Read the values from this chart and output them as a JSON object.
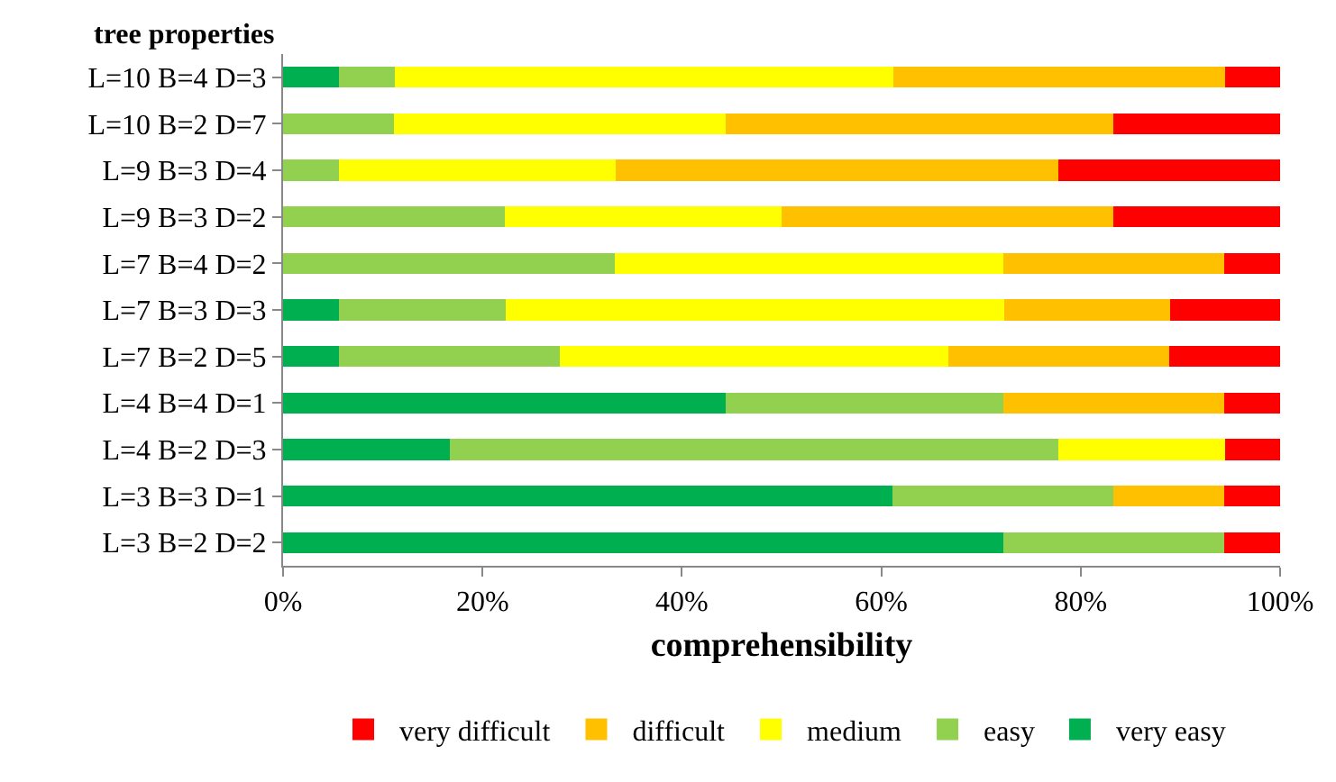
{
  "chart_data": {
    "type": "bar",
    "orientation": "horizontal",
    "stacked": true,
    "ylabel": "tree properties",
    "xlabel": "comprehensibility",
    "categories": [
      "L=10 B=4 D=3",
      "L=10 B=2 D=7",
      "L=9 B=3 D=4",
      "L=9 B=3 D=2",
      "L=7 B=4 D=2",
      "L=7 B=3 D=3",
      "L=7 B=2 D=5",
      "L=4 B=4 D=1",
      "L=4 B=2 D=3",
      "L=3 B=3 D=1",
      "L=3 B=2 D=2"
    ],
    "series": [
      {
        "name": "very easy",
        "color": "#00b050",
        "values": [
          5.6,
          0,
          0,
          0,
          0,
          5.6,
          5.6,
          44.4,
          16.7,
          61.1,
          72.2
        ]
      },
      {
        "name": "easy",
        "color": "#92d050",
        "values": [
          5.6,
          11.1,
          5.6,
          22.2,
          33.3,
          16.7,
          22.2,
          27.8,
          61.1,
          22.2,
          22.2
        ]
      },
      {
        "name": "medium",
        "color": "#ffff00",
        "values": [
          50,
          33.3,
          27.8,
          27.8,
          38.9,
          50,
          38.9,
          0,
          16.7,
          0,
          0
        ]
      },
      {
        "name": "difficult",
        "color": "#ffc000",
        "values": [
          33.3,
          38.9,
          44.4,
          33.3,
          22.2,
          16.7,
          22.2,
          22.2,
          0,
          11.1,
          0
        ]
      },
      {
        "name": "very difficult",
        "color": "#ff0000",
        "values": [
          5.6,
          16.7,
          22.2,
          16.7,
          5.6,
          11.1,
          11.1,
          5.6,
          5.6,
          5.6,
          5.6
        ]
      }
    ],
    "xlim": [
      0,
      100
    ],
    "xticks": [
      {
        "value": 0,
        "label": "0%"
      },
      {
        "value": 20,
        "label": "20%"
      },
      {
        "value": 40,
        "label": "40%"
      },
      {
        "value": 60,
        "label": "60%"
      },
      {
        "value": 80,
        "label": "80%"
      },
      {
        "value": 100,
        "label": "100%"
      }
    ],
    "grid": false,
    "legend": "bottom"
  }
}
